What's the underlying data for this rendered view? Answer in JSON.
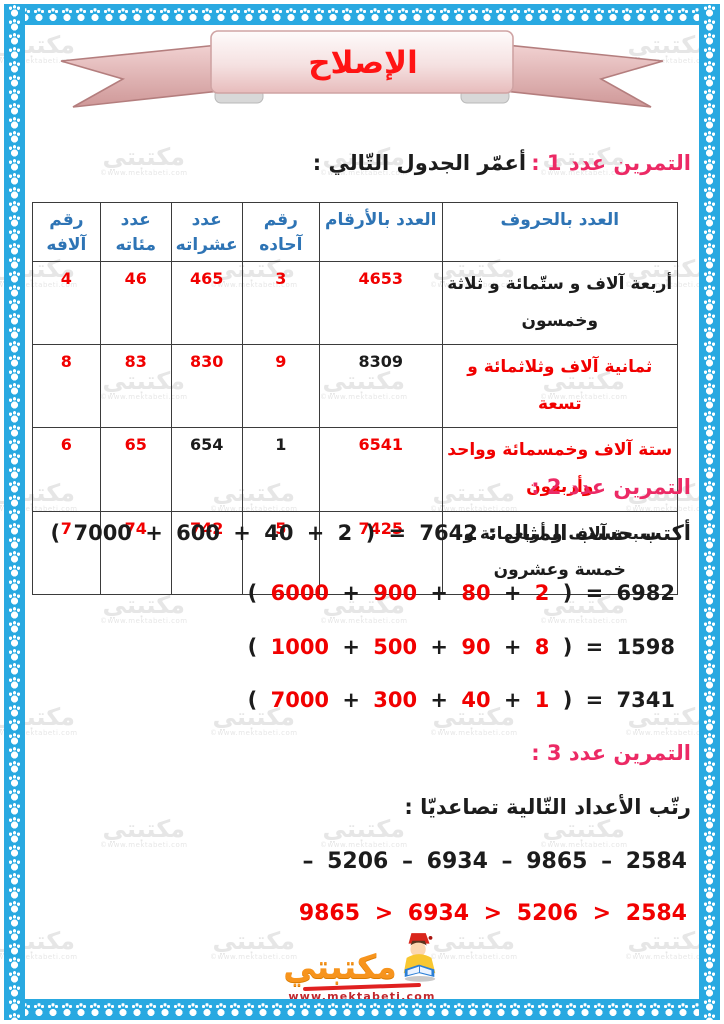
{
  "banner": {
    "title": "الإصلاح"
  },
  "exercise1": {
    "title": "التمرين عدد 1 :",
    "instruction": "أعمّر الجدول التّالي :",
    "table": {
      "headers": [
        "العدد بالحروف",
        "العدد بالأرقام",
        "رقم\nآحاده",
        "عدد\nعشراته",
        "عدد\nمئاته",
        "رقم\nآلافه"
      ],
      "rows": [
        {
          "cells": [
            {
              "text": "أربعة آلاف و ستّمائة و ثلاثة وخمسون",
              "red": false
            },
            {
              "text": "4653",
              "red": true
            },
            {
              "text": "3",
              "red": true
            },
            {
              "text": "465",
              "red": true
            },
            {
              "text": "46",
              "red": true
            },
            {
              "text": "4",
              "red": true
            }
          ]
        },
        {
          "cells": [
            {
              "text": "ثمانية آلاف وثلاثمائة و تسعة",
              "red": true
            },
            {
              "text": "8309",
              "red": false
            },
            {
              "text": "9",
              "red": true
            },
            {
              "text": "830",
              "red": true
            },
            {
              "text": "83",
              "red": true
            },
            {
              "text": "8",
              "red": true
            }
          ]
        },
        {
          "cells": [
            {
              "text": "ستة آلاف وخمسمائة وواحد وأربعون",
              "red": true
            },
            {
              "text": "6541",
              "red": true
            },
            {
              "text": "1",
              "red": false
            },
            {
              "text": "654",
              "red": false
            },
            {
              "text": "65",
              "red": true
            },
            {
              "text": "6",
              "red": true
            }
          ]
        },
        {
          "cells": [
            {
              "text": "سبعة آلاف و أربعمائة و خمسة وعشرون",
              "red": false
            },
            {
              "text": "7425",
              "red": true
            },
            {
              "text": "5",
              "red": true
            },
            {
              "text": "742",
              "red": true
            },
            {
              "text": "74",
              "red": true
            },
            {
              "text": "7",
              "red": true
            }
          ]
        }
      ]
    }
  },
  "exercise2": {
    "title": "التمرين عدد 2 :",
    "example_label": "أكتب حسب المثال :",
    "equations": [
      {
        "addends": [
          "7000",
          "600",
          "40",
          "2"
        ],
        "result": "7642",
        "red": false,
        "example": true
      },
      {
        "addends": [
          "6000",
          "900",
          "80",
          "2"
        ],
        "result": "6982",
        "red": true,
        "example": false
      },
      {
        "addends": [
          "1000",
          "500",
          "90",
          "8"
        ],
        "result": "1598",
        "red": true,
        "example": false
      },
      {
        "addends": [
          "7000",
          "300",
          "40",
          "1"
        ],
        "result": "7341",
        "red": true,
        "example": false
      }
    ]
  },
  "exercise3": {
    "title": "التمرين عدد 3 :",
    "instruction": "رتّب الأعداد التّالية تصاعديّا :",
    "sequence": "– 5206 – 6934 – 9865 – 2584",
    "answer": "9865 > 6934  > 5206 >  2584"
  },
  "watermark": {
    "brand": "مكتبتي",
    "url": "©www.mektabeti.com"
  },
  "footer": {
    "brand": "مكتبتي",
    "url": "www.mektabeti.com"
  },
  "colors": {
    "accent_pink": "#ec2a65",
    "answer_red": "#f10000",
    "header_blue": "#2e74b5",
    "border_blue": "#29a9e1",
    "logo_orange": "#f7941d"
  }
}
